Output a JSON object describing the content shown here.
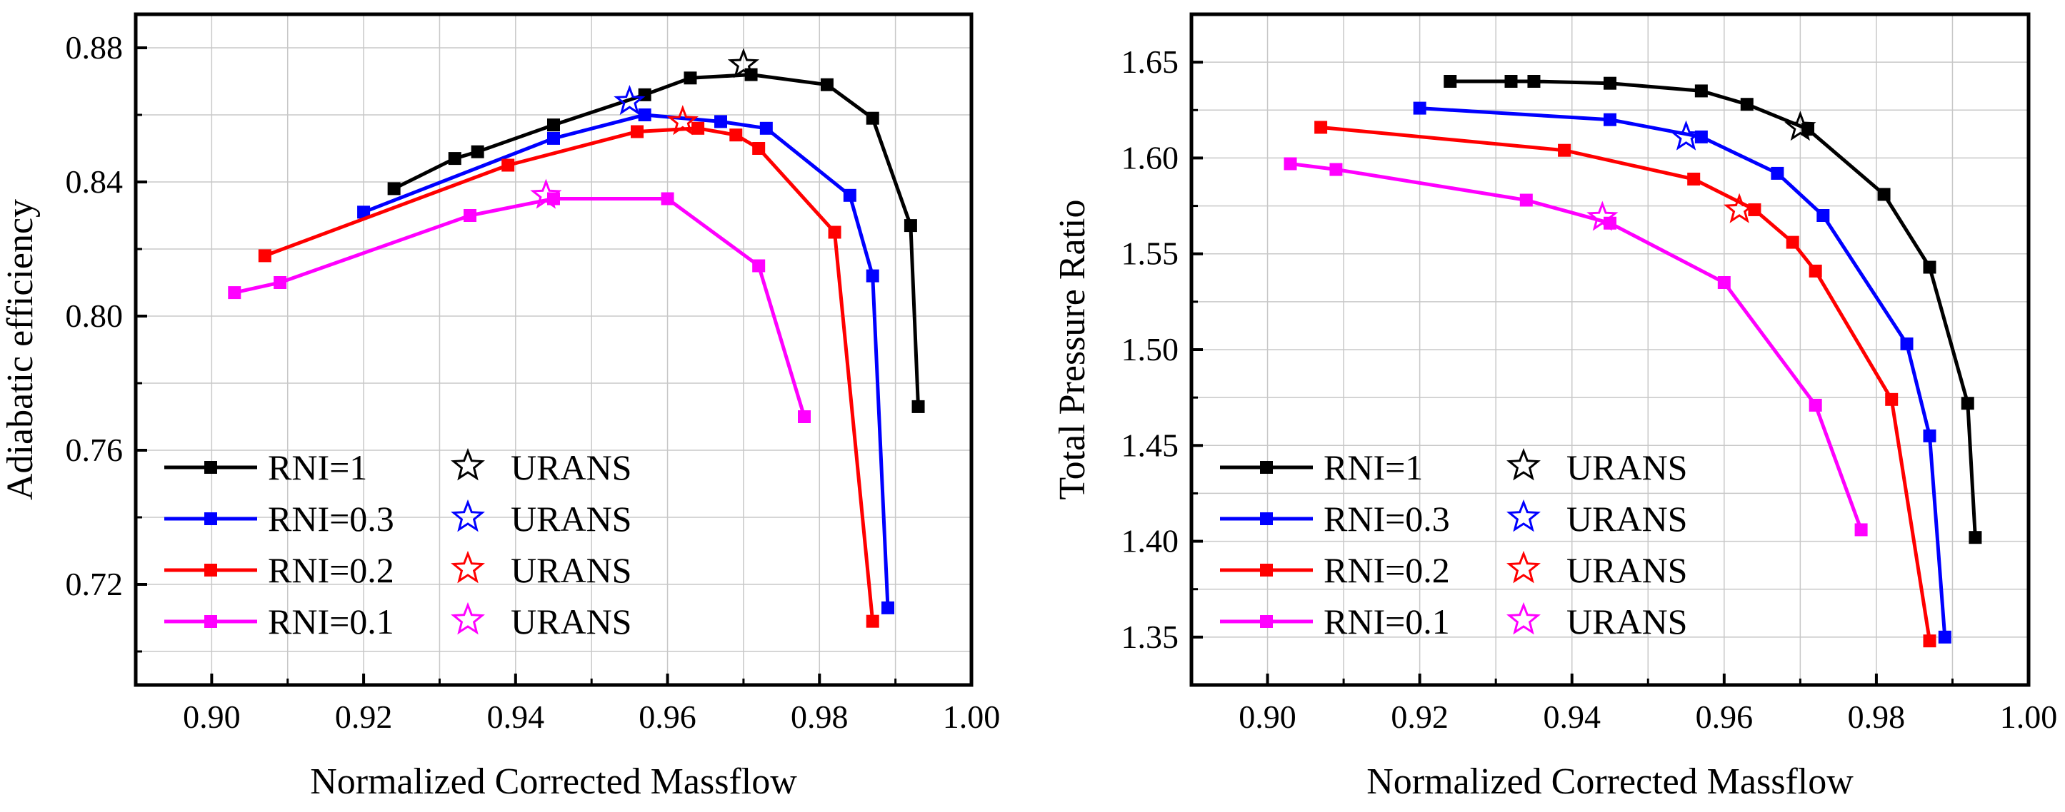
{
  "chart_data": [
    {
      "type": "line",
      "xlabel": "Normalized Corrected Massflow",
      "ylabel": "Adiabatic efficiency",
      "xlim": [
        0.89,
        1.0
      ],
      "ylim": [
        0.69,
        0.89
      ],
      "xticks": [
        "0.90",
        "0.92",
        "0.94",
        "0.96",
        "0.98",
        "1.00"
      ],
      "xtick_values": [
        0.9,
        0.92,
        0.94,
        0.96,
        0.98,
        1.0
      ],
      "yticks": [
        "0.72",
        "0.76",
        "0.80",
        "0.84",
        "0.88"
      ],
      "ytick_values": [
        0.72,
        0.76,
        0.8,
        0.84,
        0.88
      ],
      "grid": true,
      "legend_position": "bottom-left",
      "series": [
        {
          "name": "RNI=1",
          "color": "#000000",
          "x": [
            0.924,
            0.932,
            0.935,
            0.945,
            0.957,
            0.963,
            0.971,
            0.981,
            0.987,
            0.992,
            0.993
          ],
          "y": [
            0.838,
            0.847,
            0.849,
            0.857,
            0.866,
            0.871,
            0.872,
            0.869,
            0.859,
            0.827,
            0.773
          ]
        },
        {
          "name": "RNI=0.3",
          "color": "#0000ff",
          "x": [
            0.92,
            0.945,
            0.957,
            0.967,
            0.973,
            0.984,
            0.987,
            0.989
          ],
          "y": [
            0.831,
            0.853,
            0.86,
            0.858,
            0.856,
            0.836,
            0.812,
            0.713
          ]
        },
        {
          "name": "RNI=0.2",
          "color": "#ff0000",
          "x": [
            0.907,
            0.939,
            0.956,
            0.964,
            0.969,
            0.972,
            0.982,
            0.987
          ],
          "y": [
            0.818,
            0.845,
            0.855,
            0.856,
            0.854,
            0.85,
            0.825,
            0.709
          ]
        },
        {
          "name": "RNI=0.1",
          "color": "#ff00ff",
          "x": [
            0.903,
            0.909,
            0.934,
            0.945,
            0.96,
            0.972,
            0.978
          ],
          "y": [
            0.807,
            0.81,
            0.83,
            0.835,
            0.835,
            0.815,
            0.77
          ]
        }
      ],
      "urans": [
        {
          "name": "URANS",
          "color": "#000000",
          "x": 0.97,
          "y": 0.875
        },
        {
          "name": "URANS",
          "color": "#0000ff",
          "x": 0.955,
          "y": 0.864
        },
        {
          "name": "URANS",
          "color": "#ff0000",
          "x": 0.962,
          "y": 0.858
        },
        {
          "name": "URANS",
          "color": "#ff00ff",
          "x": 0.944,
          "y": 0.836
        }
      ]
    },
    {
      "type": "line",
      "xlabel": "Normalized Corrected Massflow",
      "ylabel": "Total Pressure Ratio",
      "xlim": [
        0.89,
        1.0
      ],
      "ylim": [
        1.325,
        1.675
      ],
      "xticks": [
        "0.90",
        "0.92",
        "0.94",
        "0.96",
        "0.98",
        "1.00"
      ],
      "xtick_values": [
        0.9,
        0.92,
        0.94,
        0.96,
        0.98,
        1.0
      ],
      "yticks": [
        "1.35",
        "1.40",
        "1.45",
        "1.50",
        "1.55",
        "1.60",
        "1.65"
      ],
      "ytick_values": [
        1.35,
        1.4,
        1.45,
        1.5,
        1.55,
        1.6,
        1.65
      ],
      "grid": true,
      "legend_position": "bottom-left",
      "series": [
        {
          "name": "RNI=1",
          "color": "#000000",
          "x": [
            0.924,
            0.932,
            0.935,
            0.945,
            0.957,
            0.963,
            0.971,
            0.981,
            0.987,
            0.992,
            0.993
          ],
          "y": [
            1.64,
            1.64,
            1.64,
            1.639,
            1.635,
            1.628,
            1.615,
            1.581,
            1.543,
            1.472,
            1.402
          ]
        },
        {
          "name": "RNI=0.3",
          "color": "#0000ff",
          "x": [
            0.92,
            0.945,
            0.957,
            0.967,
            0.973,
            0.984,
            0.987,
            0.989
          ],
          "y": [
            1.626,
            1.62,
            1.611,
            1.592,
            1.57,
            1.503,
            1.455,
            1.35
          ]
        },
        {
          "name": "RNI=0.2",
          "color": "#ff0000",
          "x": [
            0.907,
            0.939,
            0.956,
            0.964,
            0.969,
            0.972,
            0.982,
            0.987
          ],
          "y": [
            1.616,
            1.604,
            1.589,
            1.573,
            1.556,
            1.541,
            1.474,
            1.348
          ]
        },
        {
          "name": "RNI=0.1",
          "color": "#ff00ff",
          "x": [
            0.903,
            0.909,
            0.934,
            0.945,
            0.96,
            0.972,
            0.978
          ],
          "y": [
            1.597,
            1.594,
            1.578,
            1.566,
            1.535,
            1.471,
            1.406
          ]
        }
      ],
      "urans": [
        {
          "name": "URANS",
          "color": "#000000",
          "x": 0.97,
          "y": 1.616
        },
        {
          "name": "URANS",
          "color": "#0000ff",
          "x": 0.955,
          "y": 1.611
        },
        {
          "name": "URANS",
          "color": "#ff0000",
          "x": 0.962,
          "y": 1.573
        },
        {
          "name": "URANS",
          "color": "#ff00ff",
          "x": 0.944,
          "y": 1.569
        }
      ]
    }
  ]
}
